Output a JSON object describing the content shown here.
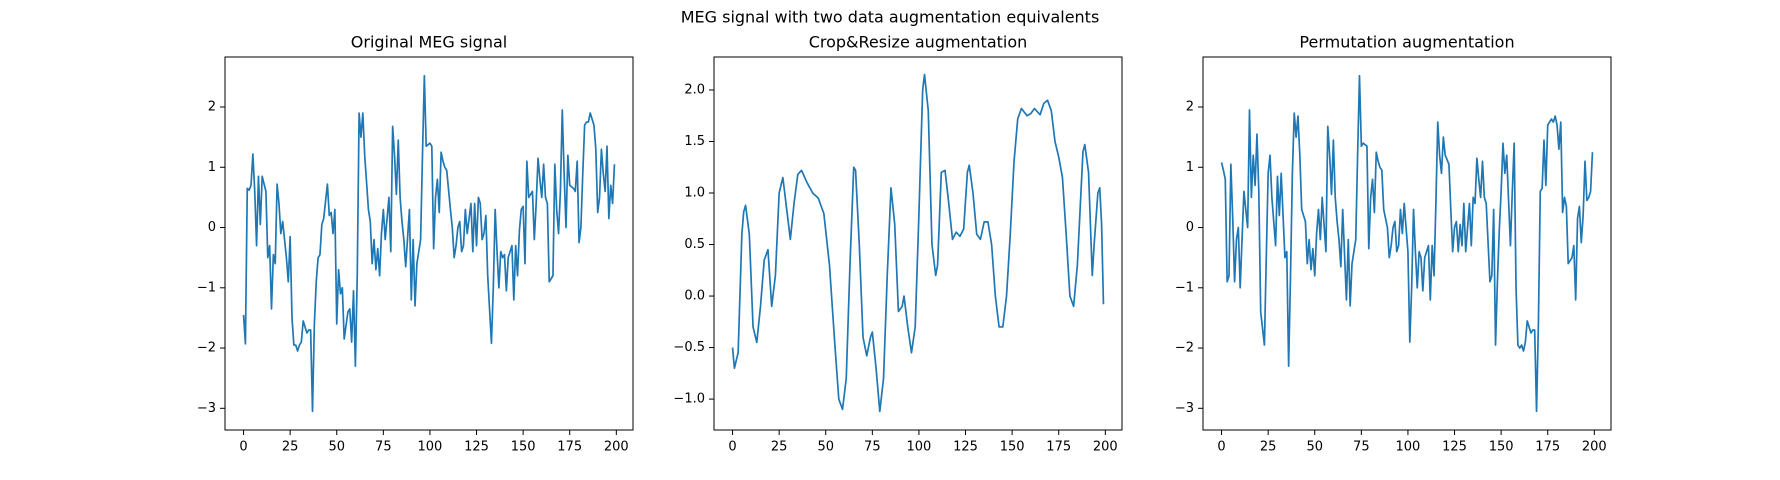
{
  "title": "MEG signal with two data augmentation equivalents",
  "chart_data": [
    {
      "type": "line",
      "title": "Original MEG signal",
      "x": [
        0,
        1,
        2,
        3,
        4,
        5,
        6,
        7,
        8,
        9,
        10,
        12,
        13,
        14,
        15,
        16,
        17,
        18,
        19,
        20,
        21,
        23,
        24,
        25,
        26,
        27,
        28,
        29,
        30,
        31,
        32,
        34,
        35,
        36,
        37,
        38,
        39,
        40,
        41,
        42,
        43,
        45,
        46,
        47,
        48,
        49,
        50,
        51,
        52,
        53,
        54,
        56,
        57,
        58,
        59,
        60,
        61,
        62,
        63,
        64,
        65,
        67,
        68,
        69,
        70,
        71,
        72,
        73,
        74,
        75,
        76,
        78,
        79,
        80,
        81,
        82,
        83,
        84,
        85,
        86,
        87,
        89,
        90,
        91,
        92,
        93,
        94,
        95,
        96,
        97,
        98,
        100,
        101,
        102,
        103,
        104,
        105,
        106,
        107,
        108,
        109,
        111,
        112,
        113,
        114,
        115,
        116,
        117,
        118,
        119,
        120,
        122,
        123,
        124,
        125,
        126,
        127,
        128,
        129,
        130,
        131,
        133,
        134,
        135,
        136,
        137,
        138,
        139,
        140,
        141,
        142,
        144,
        145,
        146,
        147,
        148,
        149,
        150,
        151,
        152,
        153,
        155,
        156,
        157,
        158,
        159,
        160,
        161,
        162,
        163,
        164,
        166,
        167,
        168,
        169,
        170,
        171,
        172,
        173,
        174,
        175,
        177,
        178,
        179,
        180,
        181,
        182,
        183,
        184,
        185,
        186,
        188,
        189,
        190,
        191,
        192,
        193,
        194,
        195,
        196,
        197,
        198,
        199
      ],
      "series": [
        {
          "color": "#1f77b4",
          "values": [
            -1.45,
            -1.93,
            0.65,
            0.62,
            0.7,
            1.22,
            0.6,
            -0.3,
            0.85,
            0.05,
            0.85,
            0.6,
            -0.5,
            -0.3,
            -1.35,
            -0.45,
            -0.6,
            0.72,
            0.4,
            -0.1,
            0.1,
            -0.5,
            -0.9,
            -0.15,
            -1.5,
            -1.95,
            -1.95,
            -2.05,
            -1.95,
            -1.9,
            -1.55,
            -1.75,
            -1.7,
            -1.7,
            -3.05,
            -1.6,
            -0.9,
            -0.5,
            -0.45,
            0.05,
            0.15,
            0.72,
            0.2,
            0.25,
            -0.1,
            0.3,
            -1.6,
            -0.7,
            -1.1,
            -1.0,
            -1.85,
            -1.4,
            -1.35,
            -1.9,
            -1.05,
            -2.3,
            -0.8,
            1.9,
            1.5,
            1.9,
            1.2,
            0.3,
            0.1,
            -0.6,
            -0.2,
            -0.7,
            -0.35,
            -0.8,
            -0.1,
            0.3,
            -0.2,
            0.5,
            -0.4,
            1.68,
            1.2,
            0.55,
            1.45,
            0.5,
            0.1,
            -0.2,
            -0.65,
            0.3,
            -1.2,
            -0.2,
            -1.3,
            -0.6,
            -0.4,
            -0.2,
            1.2,
            2.52,
            1.35,
            1.4,
            1.35,
            -0.35,
            0.5,
            0.8,
            0.25,
            1.25,
            1.1,
            1.0,
            0.95,
            0.3,
            0.0,
            -0.5,
            -0.3,
            0.0,
            0.1,
            -0.4,
            -0.3,
            0.3,
            -0.1,
            0.4,
            -0.4,
            0.4,
            -0.3,
            0.5,
            0.4,
            -0.2,
            -0.1,
            0.2,
            -0.8,
            -1.92,
            -1.0,
            0.3,
            -0.4,
            -1.0,
            -0.4,
            -0.5,
            -0.45,
            -1.05,
            -0.5,
            -0.3,
            -1.2,
            -0.3,
            -0.8,
            -0.05,
            0.3,
            0.35,
            -0.6,
            1.1,
            0.5,
            0.6,
            -0.2,
            0.4,
            1.15,
            0.8,
            0.5,
            1.05,
            0.5,
            0.4,
            -0.9,
            -0.8,
            1.05,
            0.3,
            -0.1,
            0.6,
            1.95,
            0.9,
            0.0,
            1.2,
            0.7,
            0.65,
            0.6,
            1.1,
            -0.25,
            0.0,
            0.9,
            1.7,
            1.75,
            1.75,
            1.9,
            1.7,
            1.3,
            0.25,
            0.5,
            1.3,
            0.9,
            0.6,
            1.35,
            0.15,
            0.7,
            0.4,
            1.05
          ]
        }
      ],
      "xlim": [
        -9.95,
        208.95
      ],
      "xticks": [
        0,
        25,
        50,
        75,
        100,
        125,
        150,
        175,
        200
      ],
      "ylim": [
        -3.36,
        2.83
      ],
      "yticks": [
        {
          "value": -3,
          "label": "−3"
        },
        {
          "value": -2,
          "label": "−2"
        },
        {
          "value": -1,
          "label": "−1"
        },
        0,
        1,
        2
      ]
    },
    {
      "type": "line",
      "title": "Crop&Resize augmentation",
      "x": [
        0,
        1,
        3,
        5,
        6,
        7,
        9,
        11,
        13,
        15,
        17,
        19,
        21,
        23,
        25,
        27,
        29,
        31,
        33,
        35,
        37,
        40,
        43,
        46,
        49,
        52,
        55,
        57,
        59,
        61,
        63,
        65,
        66,
        68,
        70,
        72,
        74,
        75,
        77,
        79,
        81,
        83,
        85,
        87,
        89,
        91,
        92,
        94,
        96,
        98,
        100,
        102,
        103,
        105,
        107,
        109,
        110,
        112,
        114,
        116,
        118,
        120,
        122,
        124,
        126,
        127,
        129,
        131,
        133,
        135,
        137,
        139,
        141,
        143,
        145,
        147,
        149,
        151,
        153,
        155,
        158,
        160,
        162,
        164,
        165,
        167,
        169,
        171,
        173,
        175,
        177,
        179,
        181,
        183,
        185,
        188,
        189,
        191,
        193,
        194,
        196,
        197,
        198,
        199
      ],
      "series": [
        {
          "color": "#1f77b4",
          "values": [
            -0.5,
            -0.7,
            -0.55,
            0.6,
            0.82,
            0.88,
            0.6,
            -0.3,
            -0.45,
            -0.1,
            0.35,
            0.45,
            -0.1,
            0.2,
            1.0,
            1.15,
            0.85,
            0.55,
            0.9,
            1.18,
            1.22,
            1.1,
            1.0,
            0.95,
            0.8,
            0.3,
            -0.5,
            -1.0,
            -1.1,
            -0.8,
            0.3,
            1.25,
            1.22,
            0.5,
            -0.4,
            -0.58,
            -0.4,
            -0.35,
            -0.7,
            -1.12,
            -0.8,
            0.2,
            1.05,
            0.7,
            -0.15,
            -0.1,
            0.0,
            -0.3,
            -0.55,
            -0.3,
            0.8,
            2.0,
            2.15,
            1.8,
            0.5,
            0.2,
            0.3,
            1.2,
            1.22,
            0.9,
            0.55,
            0.62,
            0.58,
            0.65,
            1.2,
            1.27,
            1.0,
            0.6,
            0.55,
            0.72,
            0.72,
            0.5,
            0.0,
            -0.3,
            -0.3,
            0.0,
            0.6,
            1.3,
            1.72,
            1.82,
            1.75,
            1.77,
            1.82,
            1.78,
            1.76,
            1.87,
            1.9,
            1.8,
            1.5,
            1.35,
            1.15,
            0.6,
            0.0,
            -0.1,
            0.3,
            1.4,
            1.47,
            1.2,
            0.2,
            0.5,
            1.0,
            1.05,
            0.7,
            -0.08
          ]
        }
      ],
      "xlim": [
        -9.95,
        208.95
      ],
      "xticks": [
        0,
        25,
        50,
        75,
        100,
        125,
        150,
        175,
        200
      ],
      "ylim": [
        -1.3,
        2.32
      ],
      "yticks": [
        {
          "value": -1,
          "label": "−1.0"
        },
        {
          "value": -0.5,
          "label": "−0.5"
        },
        {
          "value": 0,
          "label": "0.0"
        },
        0.5,
        {
          "value": 1,
          "label": "1.0"
        },
        1.5,
        {
          "value": 2,
          "label": "2.0"
        }
      ]
    },
    {
      "type": "line",
      "title": "Permutation augmentation",
      "x": [
        0,
        1,
        2,
        3,
        4,
        5,
        6,
        7,
        8,
        9,
        10,
        12,
        13,
        14,
        15,
        16,
        17,
        18,
        19,
        20,
        21,
        23,
        24,
        25,
        26,
        27,
        28,
        29,
        30,
        31,
        32,
        34,
        35,
        36,
        37,
        38,
        39,
        40,
        41,
        42,
        43,
        45,
        46,
        47,
        48,
        49,
        50,
        51,
        52,
        53,
        54,
        56,
        57,
        58,
        59,
        60,
        61,
        62,
        63,
        64,
        65,
        67,
        68,
        69,
        70,
        71,
        72,
        73,
        74,
        75,
        76,
        78,
        79,
        80,
        81,
        82,
        83,
        84,
        85,
        86,
        87,
        89,
        90,
        91,
        92,
        93,
        94,
        95,
        96,
        97,
        98,
        100,
        101,
        102,
        103,
        104,
        105,
        106,
        107,
        108,
        109,
        111,
        112,
        113,
        114,
        115,
        116,
        117,
        118,
        119,
        120,
        122,
        123,
        124,
        125,
        126,
        127,
        128,
        129,
        130,
        131,
        133,
        134,
        135,
        136,
        137,
        138,
        139,
        140,
        141,
        142,
        144,
        145,
        146,
        147,
        148,
        149,
        150,
        151,
        152,
        153,
        155,
        156,
        157,
        158,
        159,
        160,
        161,
        162,
        163,
        164,
        166,
        167,
        168,
        169,
        170,
        171,
        172,
        173,
        174,
        175,
        177,
        178,
        179,
        180,
        181,
        182,
        183,
        184,
        185,
        186,
        188,
        189,
        190,
        191,
        192,
        193,
        194,
        195,
        196,
        197,
        198,
        199
      ],
      "series": [
        {
          "color": "#1f77b4",
          "values": [
            1.08,
            0.95,
            0.8,
            -0.9,
            -0.8,
            1.05,
            0.15,
            -0.9,
            -0.2,
            0.0,
            -1.0,
            0.6,
            0.3,
            0.0,
            1.95,
            0.5,
            1.2,
            0.7,
            1.55,
            0.6,
            -1.4,
            -1.95,
            -0.5,
            0.9,
            1.2,
            0.5,
            0.1,
            -0.3,
            0.85,
            0.2,
            0.9,
            -0.5,
            -0.4,
            -2.3,
            -0.8,
            0.9,
            1.9,
            1.5,
            1.85,
            1.2,
            0.3,
            0.1,
            -0.6,
            -0.2,
            -0.7,
            -0.35,
            -0.8,
            -0.1,
            0.3,
            -0.2,
            0.5,
            -0.4,
            1.68,
            1.2,
            0.55,
            1.45,
            0.5,
            0.1,
            -0.2,
            -0.65,
            0.3,
            -1.2,
            -0.2,
            -1.3,
            -0.6,
            -0.4,
            -0.2,
            1.2,
            2.52,
            1.35,
            1.4,
            1.35,
            -0.35,
            0.5,
            0.8,
            0.25,
            1.25,
            1.1,
            1.0,
            0.95,
            0.3,
            0.0,
            -0.5,
            -0.3,
            0.0,
            0.1,
            -0.4,
            -0.3,
            0.3,
            -0.1,
            0.4,
            -0.4,
            -1.9,
            -1.0,
            0.3,
            -0.4,
            -1.0,
            -0.4,
            -0.5,
            -1.05,
            -0.5,
            -0.3,
            -1.2,
            -0.3,
            -0.8,
            0.4,
            1.75,
            1.2,
            0.9,
            1.5,
            1.2,
            1.05,
            0.3,
            -0.4,
            0.0,
            0.1,
            -0.4,
            0.05,
            -0.3,
            0.4,
            -0.4,
            0.4,
            -0.3,
            0.5,
            0.4,
            1.15,
            0.8,
            0.5,
            1.1,
            0.5,
            0.4,
            -0.9,
            -0.8,
            0.3,
            -1.95,
            -0.9,
            -0.05,
            0.6,
            1.4,
            0.9,
            1.2,
            -0.3,
            0.6,
            1.4,
            -1.0,
            -1.95,
            -2.0,
            -1.95,
            -2.05,
            -1.9,
            -1.55,
            -1.75,
            -1.7,
            -1.7,
            -3.05,
            -1.6,
            0.6,
            0.65,
            1.45,
            0.7,
            1.7,
            1.8,
            1.75,
            1.85,
            1.7,
            1.3,
            1.75,
            0.25,
            0.5,
            0.35,
            -0.6,
            -0.5,
            -0.3,
            -1.2,
            0.15,
            0.35,
            -0.25,
            0.2,
            1.1,
            0.45,
            0.5,
            0.6,
            1.25
          ]
        }
      ],
      "xlim": [
        -9.95,
        208.95
      ],
      "xticks": [
        0,
        25,
        50,
        75,
        100,
        125,
        150,
        175,
        200
      ],
      "ylim": [
        -3.36,
        2.83
      ],
      "yticks": [
        {
          "value": -3,
          "label": "−3"
        },
        {
          "value": -2,
          "label": "−2"
        },
        {
          "value": -1,
          "label": "−1"
        },
        0,
        1,
        2
      ]
    }
  ]
}
